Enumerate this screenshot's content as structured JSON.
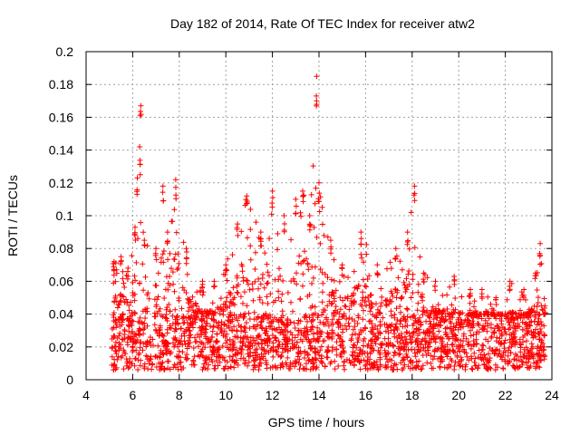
{
  "chart_data": {
    "type": "scatter",
    "title": "Day 182 of 2014, Rate Of TEC Index for receiver atw2",
    "xlabel": "GPS time / hours",
    "ylabel": "ROTI / TECUs",
    "xlim": [
      4,
      24
    ],
    "ylim": [
      0,
      0.2
    ],
    "grid": true,
    "marker": "+",
    "marker_color": "#ff0000",
    "x_ticks": [
      4,
      6,
      8,
      10,
      12,
      14,
      16,
      18,
      20,
      22,
      24
    ],
    "y_ticks": [
      0,
      0.02,
      0.04,
      0.06,
      0.08,
      0.1,
      0.12,
      0.14,
      0.16,
      0.18,
      0.2
    ],
    "x_tick_labels": [
      "4",
      "6",
      "8",
      "10",
      "12",
      "14",
      "16",
      "18",
      "20",
      "22",
      "24"
    ],
    "y_tick_labels": [
      "0",
      "0.02",
      "0.04",
      "0.06",
      "0.08",
      "0.1",
      "0.12",
      "0.14",
      "0.16",
      "0.18",
      "0.2"
    ],
    "data_range_hours": [
      5.1,
      23.7
    ],
    "series": [
      {
        "name": "atw2 ROTI",
        "envelope_points": [
          {
            "x": 5.2,
            "y": 0.072
          },
          {
            "x": 5.5,
            "y": 0.075
          },
          {
            "x": 5.8,
            "y": 0.068
          },
          {
            "x": 6.1,
            "y": 0.093
          },
          {
            "x": 6.2,
            "y": 0.123
          },
          {
            "x": 6.3,
            "y": 0.142
          },
          {
            "x": 6.35,
            "y": 0.167
          },
          {
            "x": 6.5,
            "y": 0.085
          },
          {
            "x": 7.0,
            "y": 0.08
          },
          {
            "x": 7.3,
            "y": 0.118
          },
          {
            "x": 7.5,
            "y": 0.09
          },
          {
            "x": 7.85,
            "y": 0.122
          },
          {
            "x": 8.3,
            "y": 0.08
          },
          {
            "x": 9.0,
            "y": 0.06
          },
          {
            "x": 9.5,
            "y": 0.06
          },
          {
            "x": 10.0,
            "y": 0.07
          },
          {
            "x": 10.5,
            "y": 0.095
          },
          {
            "x": 10.9,
            "y": 0.112
          },
          {
            "x": 11.5,
            "y": 0.09
          },
          {
            "x": 12.0,
            "y": 0.115
          },
          {
            "x": 12.5,
            "y": 0.1
          },
          {
            "x": 13.0,
            "y": 0.11
          },
          {
            "x": 13.3,
            "y": 0.115
          },
          {
            "x": 13.6,
            "y": 0.1
          },
          {
            "x": 13.9,
            "y": 0.185
          },
          {
            "x": 14.0,
            "y": 0.12
          },
          {
            "x": 14.5,
            "y": 0.085
          },
          {
            "x": 15.0,
            "y": 0.07
          },
          {
            "x": 15.8,
            "y": 0.09
          },
          {
            "x": 16.5,
            "y": 0.07
          },
          {
            "x": 17.3,
            "y": 0.08
          },
          {
            "x": 17.8,
            "y": 0.09
          },
          {
            "x": 18.1,
            "y": 0.118
          },
          {
            "x": 18.5,
            "y": 0.065
          },
          {
            "x": 19.0,
            "y": 0.06
          },
          {
            "x": 19.8,
            "y": 0.063
          },
          {
            "x": 20.5,
            "y": 0.055
          },
          {
            "x": 21.0,
            "y": 0.055
          },
          {
            "x": 21.6,
            "y": 0.05
          },
          {
            "x": 22.2,
            "y": 0.06
          },
          {
            "x": 22.8,
            "y": 0.055
          },
          {
            "x": 23.3,
            "y": 0.065
          },
          {
            "x": 23.5,
            "y": 0.083
          },
          {
            "x": 23.7,
            "y": 0.045
          }
        ],
        "typical_band": [
          0.01,
          0.04
        ]
      }
    ]
  }
}
